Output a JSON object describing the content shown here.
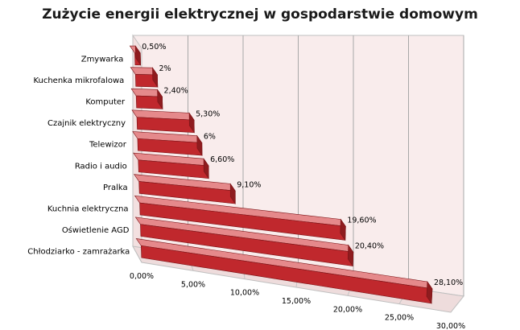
{
  "chart_data": {
    "type": "bar",
    "orientation": "horizontal",
    "style": "3d",
    "title": "Zużycie energii elektrycznej w gospodarstwie domowym",
    "categories": [
      "Zmywarka",
      "Kuchenka mikrofalowa",
      "Komputer",
      "Czajnik elektryczny",
      "Telewizor",
      "Radio i audio",
      "Pralka",
      "Kuchnia elektryczna",
      "Oświetlenie AGD",
      "Chłodziarko - zamrażarka"
    ],
    "values": [
      0.5,
      2,
      2.4,
      5.3,
      6,
      6.6,
      9.1,
      19.6,
      20.4,
      28.1
    ],
    "value_labels": [
      "0,50%",
      "2%",
      "2,40%",
      "5,30%",
      "6%",
      "6,60%",
      "9,10%",
      "19,60%",
      "20,40%",
      "28,10%"
    ],
    "x_ticks": [
      0,
      5,
      10,
      15,
      20,
      25,
      30
    ],
    "x_tick_labels": [
      "0,00%",
      "5,00%",
      "10,00%",
      "15,00%",
      "20,00%",
      "25,00%",
      "30,00%"
    ],
    "xlim": [
      0,
      30
    ],
    "xlabel": "",
    "ylabel": "",
    "grid": true,
    "bar_color": "#c0282d",
    "bar_top_color": "#e5898b",
    "bar_end_color": "#8f1c1f",
    "wall_color": "#f9ecec"
  }
}
